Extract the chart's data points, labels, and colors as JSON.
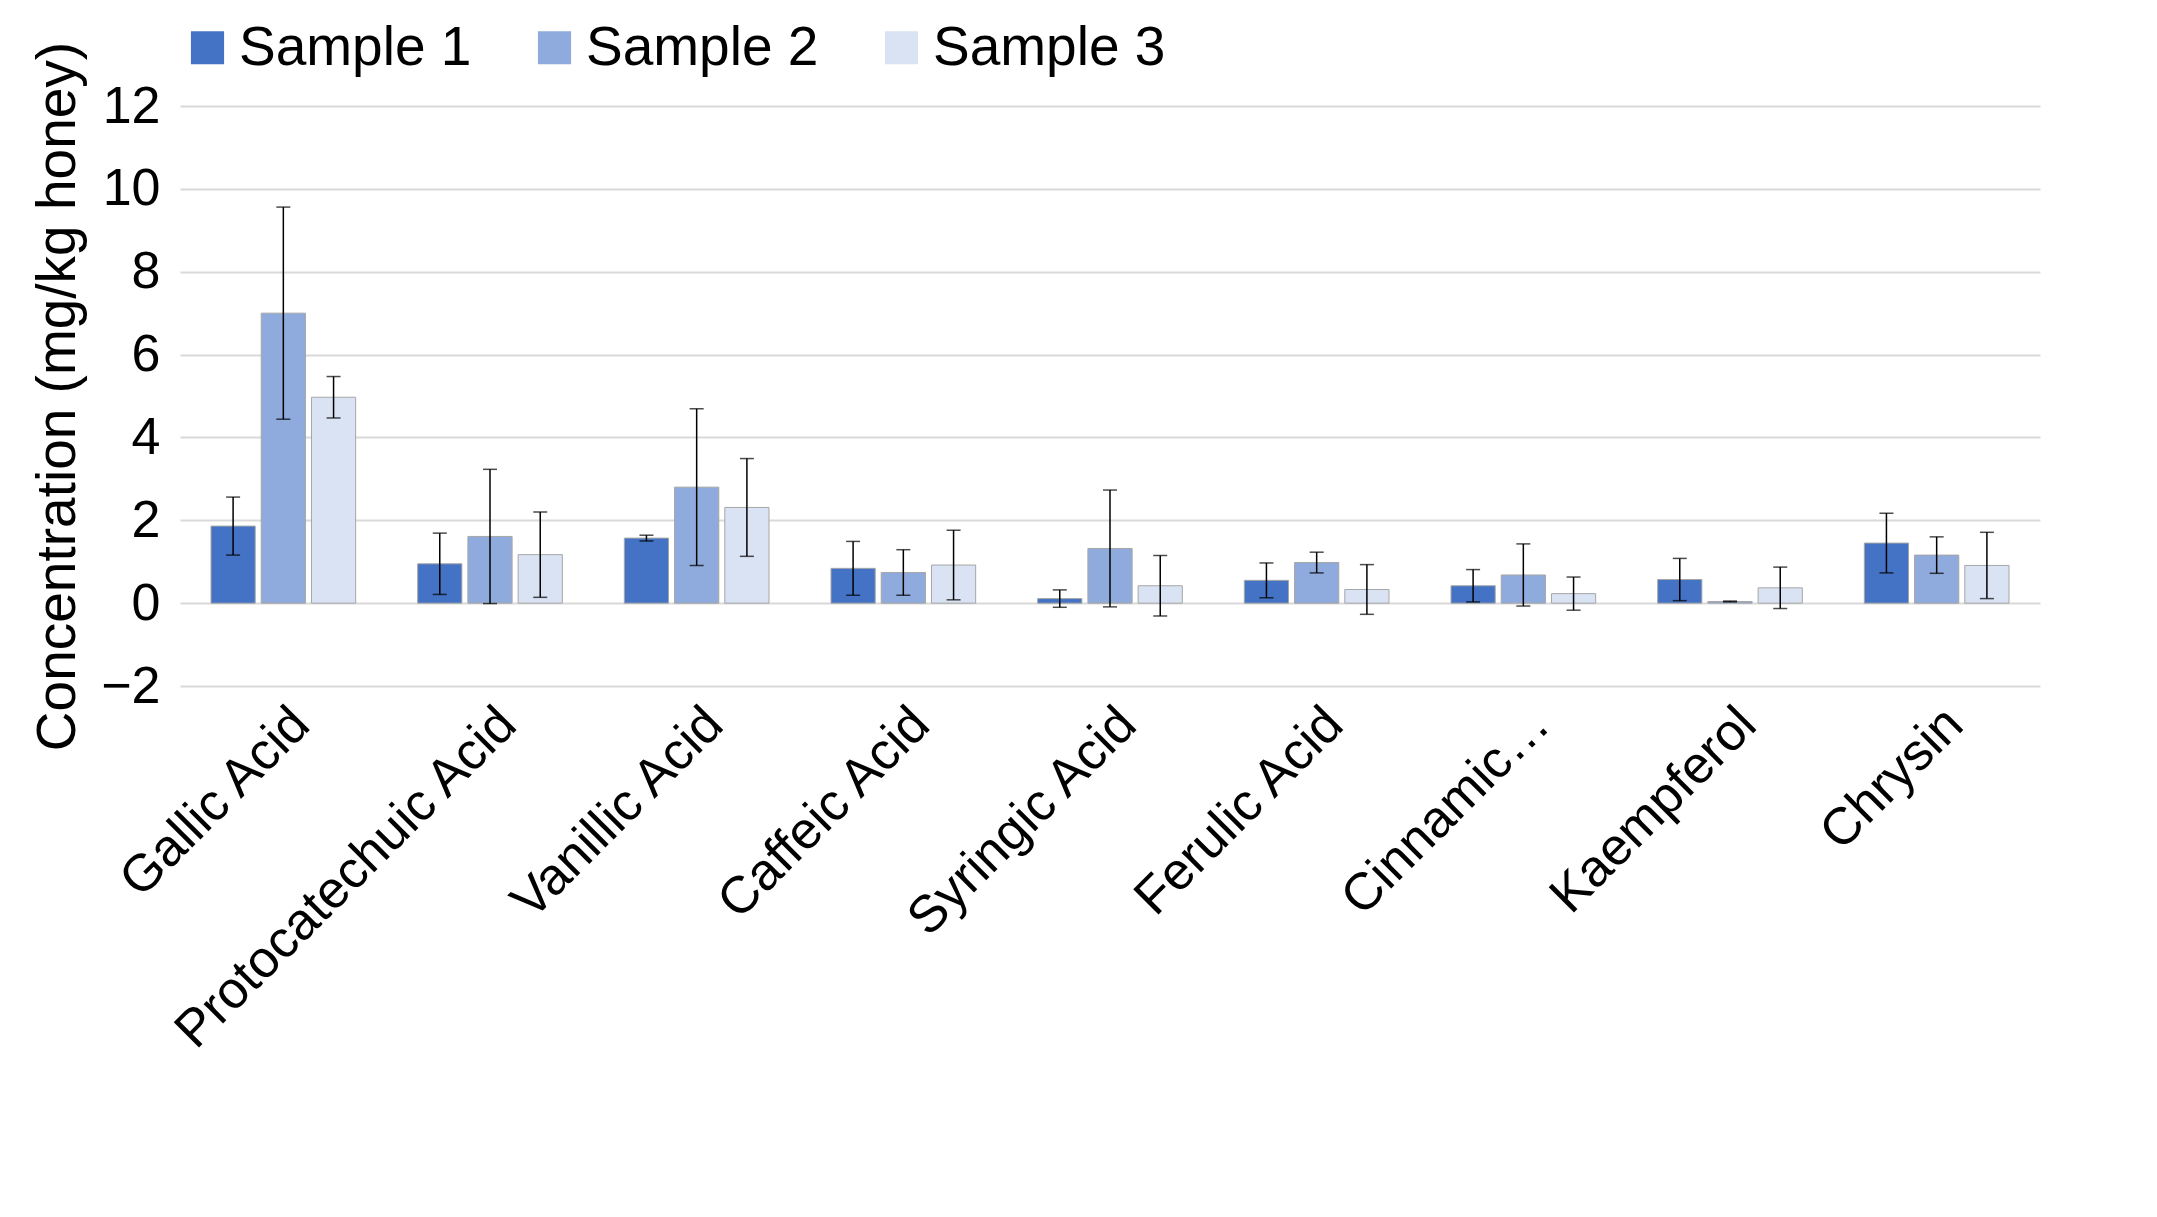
{
  "chart_data": {
    "type": "bar",
    "ylabel": "Concentration (mg/kg honey)",
    "categories": [
      "Gallic Acid",
      "Protocatechuic Acid",
      "Vanillic Acid",
      "Caffeic Acid",
      "Syringic Acid",
      "Ferulic Acid",
      "Cinnamic…",
      "Kaempferol",
      "Chrysin"
    ],
    "series": [
      {
        "name": "Sample 1",
        "color": "#4472c4",
        "values": [
          1.86,
          0.95,
          1.57,
          0.84,
          0.11,
          0.55,
          0.42,
          0.57,
          1.45
        ],
        "errors": [
          0.7,
          0.74,
          0.07,
          0.65,
          0.21,
          0.42,
          0.39,
          0.51,
          0.72
        ]
      },
      {
        "name": "Sample 2",
        "color": "#8faadc",
        "values": [
          7.0,
          1.61,
          2.8,
          0.74,
          1.32,
          0.98,
          0.68,
          0.04,
          1.16
        ],
        "errors": [
          2.56,
          1.62,
          1.89,
          0.55,
          1.41,
          0.25,
          0.75,
          0.01,
          0.44
        ]
      },
      {
        "name": "Sample 3",
        "color": "#dae3f3",
        "values": [
          4.97,
          1.17,
          2.31,
          0.92,
          0.42,
          0.33,
          0.23,
          0.37,
          0.91
        ],
        "errors": [
          0.5,
          1.03,
          1.18,
          0.84,
          0.73,
          0.6,
          0.4,
          0.5,
          0.8
        ]
      }
    ],
    "ylim": [
      -2,
      12
    ],
    "yticks": [
      -2,
      0,
      2,
      4,
      6,
      8,
      10,
      12
    ],
    "grid": "y",
    "legend": "top"
  }
}
